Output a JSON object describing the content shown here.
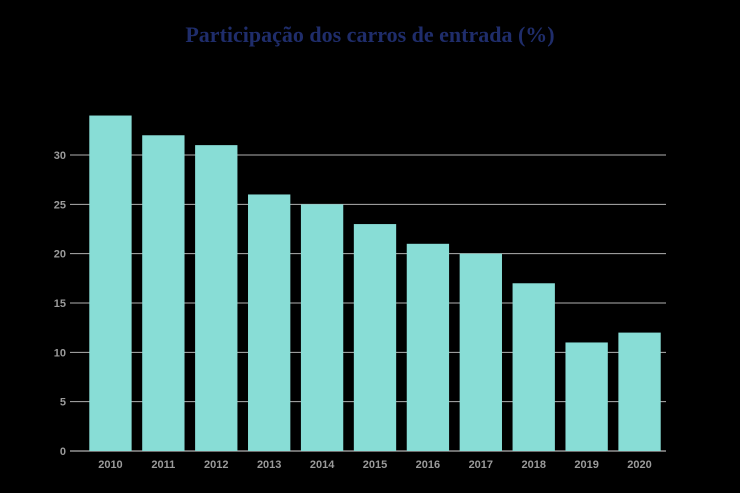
{
  "chart_data": {
    "type": "bar",
    "title": "Participação dos carros de entrada (%)",
    "xlabel": "",
    "ylabel": "",
    "categories": [
      "2010",
      "2011",
      "2012",
      "2013",
      "2014",
      "2015",
      "2016",
      "2017",
      "2018",
      "2019",
      "2020"
    ],
    "values": [
      34,
      32,
      31,
      26,
      25,
      23,
      21,
      20,
      17,
      11,
      12
    ],
    "ylim": [
      0,
      35
    ],
    "yticks": [
      0,
      5,
      10,
      15,
      20,
      25,
      30
    ],
    "grid": true,
    "colors": {
      "bar": "#88ddd6",
      "grid": "#b0b0b0",
      "title": "#1f2d6b",
      "background": "#000000",
      "tick": "#9a9a9a"
    }
  }
}
